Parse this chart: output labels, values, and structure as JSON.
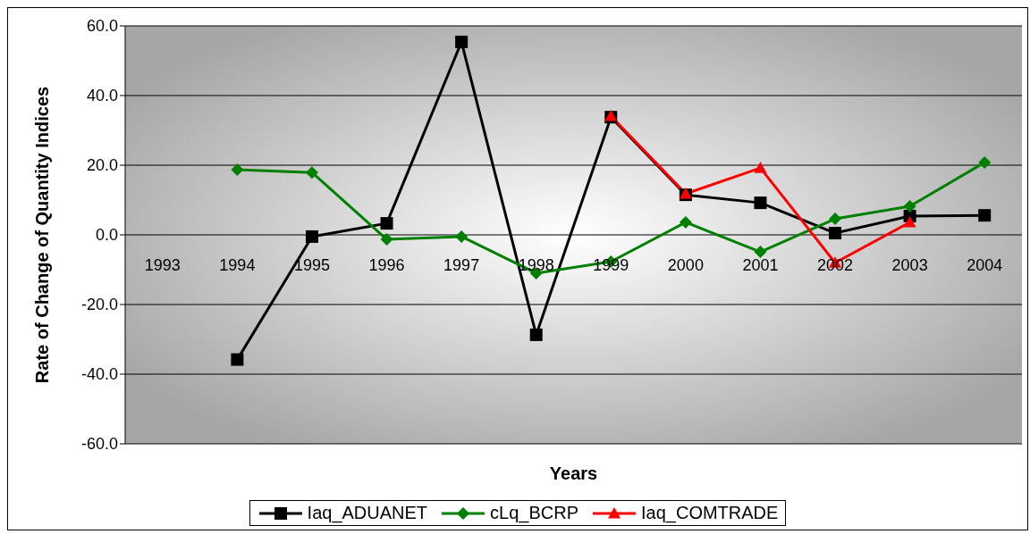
{
  "chart_data": {
    "type": "line",
    "xlabel": "Years",
    "ylabel": "Rate of Change of Quantity Indices",
    "categories": [
      "1993",
      "1994",
      "1995",
      "1996",
      "1997",
      "1998",
      "1999",
      "2000",
      "2001",
      "2002",
      "2003",
      "2004"
    ],
    "series": [
      {
        "name": "Iaq_ADUANET",
        "color": "#000000",
        "marker": "square",
        "values": [
          null,
          -35.8,
          -0.5,
          3.3,
          55.4,
          -28.7,
          33.8,
          11.5,
          9.2,
          0.5,
          5.4,
          5.6
        ]
      },
      {
        "name": "cLq_BCRP",
        "color": "#008000",
        "marker": "diamond",
        "values": [
          null,
          18.7,
          17.9,
          -1.3,
          -0.5,
          -11.0,
          -7.7,
          3.6,
          -4.9,
          4.6,
          8.2,
          20.8
        ]
      },
      {
        "name": "Iaq_COMTRADE",
        "color": "#ff0000",
        "marker": "triangle",
        "values": [
          null,
          null,
          null,
          null,
          null,
          null,
          34.1,
          11.8,
          19.2,
          -8.0,
          3.6,
          null
        ]
      }
    ],
    "ylim": [
      -60,
      60
    ],
    "yticks": [
      {
        "value": -60,
        "label": "-60.0"
      },
      {
        "value": -40,
        "label": "-40.0"
      },
      {
        "value": -20,
        "label": "-20.0"
      },
      {
        "value": 0,
        "label": "0.0"
      },
      {
        "value": 20,
        "label": "20.0"
      },
      {
        "value": 40,
        "label": "40.0"
      },
      {
        "value": 60,
        "label": "60.0"
      }
    ],
    "grid": "y",
    "legend": "bottom",
    "line_style": "solid"
  }
}
